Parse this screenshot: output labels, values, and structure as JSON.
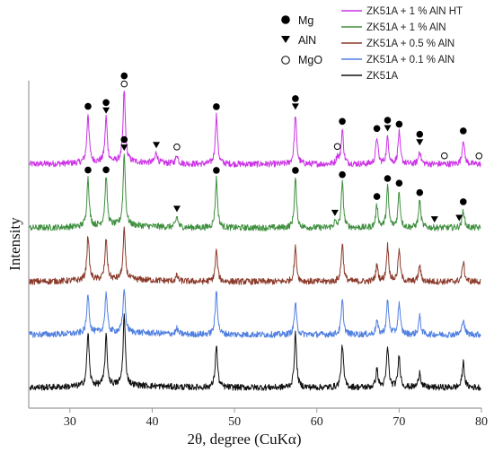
{
  "chart_data": {
    "type": "line",
    "xlabel": "2θ, degree (CuKα)",
    "ylabel": "Intensity",
    "xlim": [
      25,
      80
    ],
    "xticks": [
      30,
      40,
      50,
      60,
      70,
      80
    ],
    "grid": false,
    "legend_position": "top-right",
    "peaks": [
      32.2,
      34.4,
      36.6,
      47.8,
      57.4,
      63.1,
      67.3,
      68.6,
      70.0,
      72.5,
      77.8
    ],
    "marker_types": [
      {
        "name": "Mg",
        "shape": "filled-circle"
      },
      {
        "name": "AlN",
        "shape": "filled-triangle-down"
      },
      {
        "name": "MgO",
        "shape": "open-circle"
      }
    ],
    "series": [
      {
        "name": "ZK51A + 1 % AlN HT",
        "color": "#cc33e6",
        "offset": 4,
        "peak_heights": [
          0.55,
          0.5,
          0.8,
          0.55,
          0.55,
          0.38,
          0.3,
          0.3,
          0.35,
          0.15,
          0.28
        ],
        "extra_peaks": [
          {
            "x": 40.5,
            "h": 0.12
          },
          {
            "x": 43.0,
            "h": 0.1
          },
          {
            "x": 62.5,
            "h": 0.08
          }
        ],
        "markers": [
          {
            "x": 32.2,
            "types": [
              "Mg"
            ]
          },
          {
            "x": 34.4,
            "types": [
              "Mg",
              "AlN"
            ]
          },
          {
            "x": 36.6,
            "types": [
              "Mg",
              "MgO"
            ]
          },
          {
            "x": 40.5,
            "types": [
              "AlN"
            ]
          },
          {
            "x": 43.0,
            "types": [
              "MgO"
            ]
          },
          {
            "x": 47.8,
            "types": [
              "Mg"
            ]
          },
          {
            "x": 57.4,
            "types": [
              "Mg",
              "AlN"
            ]
          },
          {
            "x": 62.5,
            "types": [
              "MgO"
            ]
          },
          {
            "x": 63.1,
            "types": [
              "Mg"
            ]
          },
          {
            "x": 67.3,
            "types": [
              "Mg"
            ]
          },
          {
            "x": 68.6,
            "types": [
              "Mg",
              "AlN"
            ]
          },
          {
            "x": 70.0,
            "types": [
              "Mg"
            ]
          },
          {
            "x": 72.5,
            "types": [
              "Mg",
              "AlN"
            ]
          },
          {
            "x": 75.5,
            "types": [
              "MgO"
            ]
          },
          {
            "x": 77.8,
            "types": [
              "Mg"
            ]
          },
          {
            "x": 79.7,
            "types": [
              "MgO"
            ]
          }
        ]
      },
      {
        "name": "ZK51A + 1 % AlN",
        "color": "#3f8f3f",
        "offset": 3,
        "peak_heights": [
          0.55,
          0.55,
          0.8,
          0.55,
          0.55,
          0.5,
          0.25,
          0.45,
          0.4,
          0.3,
          0.2
        ],
        "extra_peaks": [
          {
            "x": 43.0,
            "h": 0.12
          },
          {
            "x": 62.2,
            "h": 0.06
          }
        ],
        "markers": [
          {
            "x": 32.2,
            "types": [
              "Mg"
            ]
          },
          {
            "x": 34.4,
            "types": [
              "Mg"
            ]
          },
          {
            "x": 36.6,
            "types": [
              "Mg",
              "AlN"
            ]
          },
          {
            "x": 43.0,
            "types": [
              "AlN"
            ]
          },
          {
            "x": 47.8,
            "types": [
              "Mg"
            ]
          },
          {
            "x": 57.4,
            "types": [
              "Mg"
            ]
          },
          {
            "x": 62.2,
            "types": [
              "AlN"
            ]
          },
          {
            "x": 63.1,
            "types": [
              "Mg"
            ]
          },
          {
            "x": 67.3,
            "types": [
              "Mg"
            ]
          },
          {
            "x": 68.6,
            "types": [
              "Mg"
            ]
          },
          {
            "x": 70.0,
            "types": [
              "Mg"
            ]
          },
          {
            "x": 72.5,
            "types": [
              "Mg"
            ]
          },
          {
            "x": 74.3,
            "types": [
              "AlN"
            ]
          },
          {
            "x": 77.3,
            "types": [
              "AlN"
            ]
          },
          {
            "x": 77.8,
            "types": [
              "Mg"
            ]
          }
        ]
      },
      {
        "name": "ZK51A + 0.5 % AlN",
        "color": "#8b3a2a",
        "offset": 2,
        "peak_heights": [
          0.5,
          0.45,
          0.55,
          0.35,
          0.38,
          0.43,
          0.18,
          0.4,
          0.35,
          0.18,
          0.22
        ],
        "extra_peaks": [
          {
            "x": 43.0,
            "h": 0.06
          }
        ],
        "markers": []
      },
      {
        "name": "ZK51A + 0.1 % AlN",
        "color": "#4f7fe0",
        "offset": 1,
        "peak_heights": [
          0.45,
          0.45,
          0.5,
          0.5,
          0.35,
          0.38,
          0.15,
          0.38,
          0.35,
          0.2,
          0.18
        ],
        "extra_peaks": [
          {
            "x": 43.0,
            "h": 0.06
          }
        ],
        "markers": []
      },
      {
        "name": "ZK51A",
        "color": "#111111",
        "offset": 0,
        "peak_heights": [
          0.6,
          0.55,
          0.78,
          0.48,
          0.6,
          0.48,
          0.2,
          0.45,
          0.35,
          0.18,
          0.28
        ],
        "extra_peaks": [],
        "markers": []
      }
    ]
  }
}
